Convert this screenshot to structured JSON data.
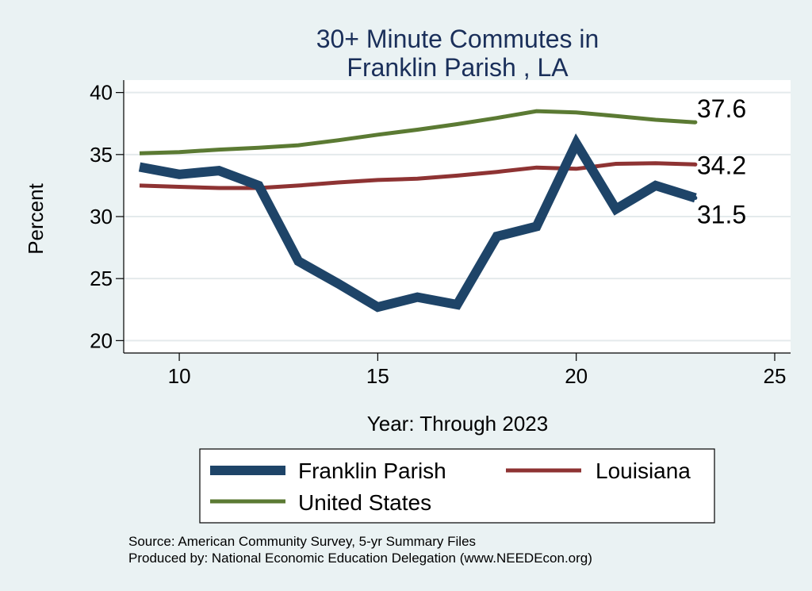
{
  "chart_data": {
    "type": "line",
    "title": [
      "30+ Minute Commutes in",
      "Franklin Parish , LA"
    ],
    "xlabel": "Year: Through 2023",
    "ylabel": "Percent",
    "xlim": [
      8.6,
      25.4
    ],
    "ylim": [
      19,
      41
    ],
    "xticks": [
      10,
      15,
      20,
      25
    ],
    "yticks": [
      20,
      25,
      30,
      35,
      40
    ],
    "grid": true,
    "series": [
      {
        "name": "United States",
        "color": "#5b7a33",
        "x": [
          9,
          10,
          11,
          12,
          13,
          14,
          15,
          16,
          17,
          18,
          19,
          20,
          21,
          22,
          23
        ],
        "values": [
          35.1,
          35.2,
          35.4,
          35.55,
          35.75,
          36.15,
          36.6,
          37.0,
          37.45,
          37.95,
          38.5,
          38.4,
          38.1,
          37.8,
          37.6
        ],
        "end_label": "37.6"
      },
      {
        "name": "Louisiana",
        "color": "#8e3333",
        "x": [
          9,
          10,
          11,
          12,
          13,
          14,
          15,
          16,
          17,
          18,
          19,
          20,
          21,
          22,
          23
        ],
        "values": [
          32.5,
          32.4,
          32.3,
          32.3,
          32.5,
          32.75,
          32.95,
          33.05,
          33.3,
          33.6,
          33.95,
          33.85,
          34.25,
          34.3,
          34.2
        ],
        "end_label": "34.2"
      },
      {
        "name": "Franklin Parish",
        "color": "#1e4468",
        "x": [
          9,
          10,
          11,
          12,
          13,
          14,
          15,
          16,
          17,
          18,
          19,
          20,
          21,
          22,
          23
        ],
        "values": [
          34.0,
          33.4,
          33.7,
          32.5,
          26.4,
          24.6,
          22.7,
          23.5,
          22.9,
          28.4,
          29.2,
          35.9,
          30.6,
          32.5,
          31.5
        ],
        "end_label": "31.5"
      }
    ],
    "legend": {
      "placement": "bottom",
      "entries": [
        "Franklin Parish",
        "Louisiana",
        "United States"
      ]
    }
  },
  "source": {
    "line1": "Source: American Community Survey, 5-yr Summary Files",
    "line2": "Produced by: National Economic Education Delegation (www.NEEDEcon.org)"
  }
}
